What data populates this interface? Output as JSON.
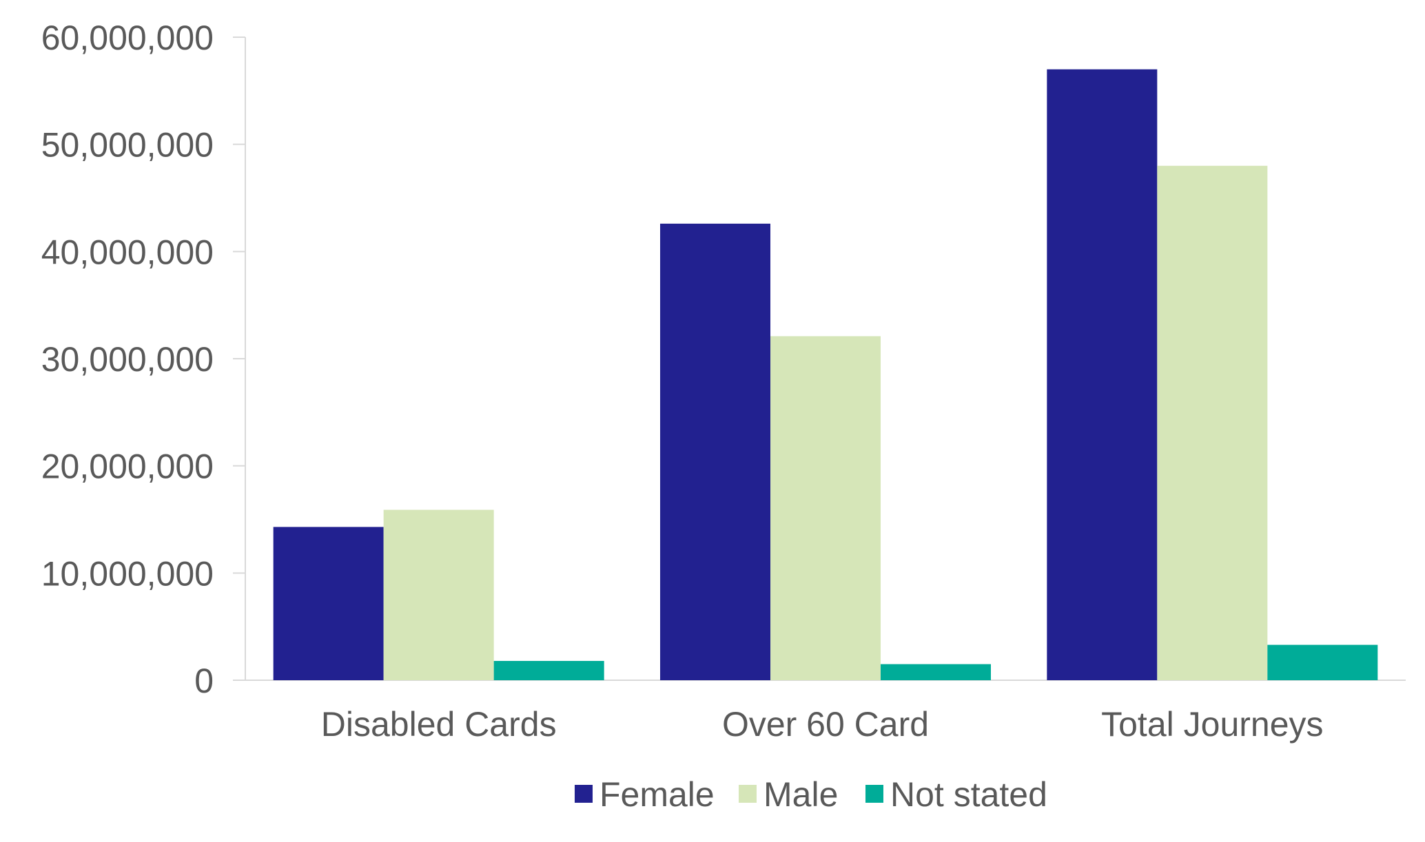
{
  "chart_data": {
    "type": "bar",
    "title": "",
    "xlabel": "",
    "ylabel": "",
    "categories": [
      "Disabled Cards",
      "Over 60 Card",
      "Total Journeys"
    ],
    "series": [
      {
        "name": "Female",
        "color": "#222190",
        "values": [
          14300000,
          42600000,
          57000000
        ]
      },
      {
        "name": "Male",
        "color": "#D6E6B8",
        "values": [
          15900000,
          32100000,
          48000000
        ]
      },
      {
        "name": "Not stated",
        "color": "#00AC98",
        "values": [
          1800000,
          1500000,
          3300000
        ]
      }
    ],
    "ylim": [
      0,
      60000000
    ],
    "yticks": [
      0,
      10000000,
      20000000,
      30000000,
      40000000,
      50000000,
      60000000
    ],
    "ytick_labels": [
      "0",
      "10,000,000",
      "20,000,000",
      "30,000,000",
      "40,000,000",
      "50,000,000",
      "60,000,000"
    ],
    "grid": false,
    "legend_position": "bottom"
  }
}
